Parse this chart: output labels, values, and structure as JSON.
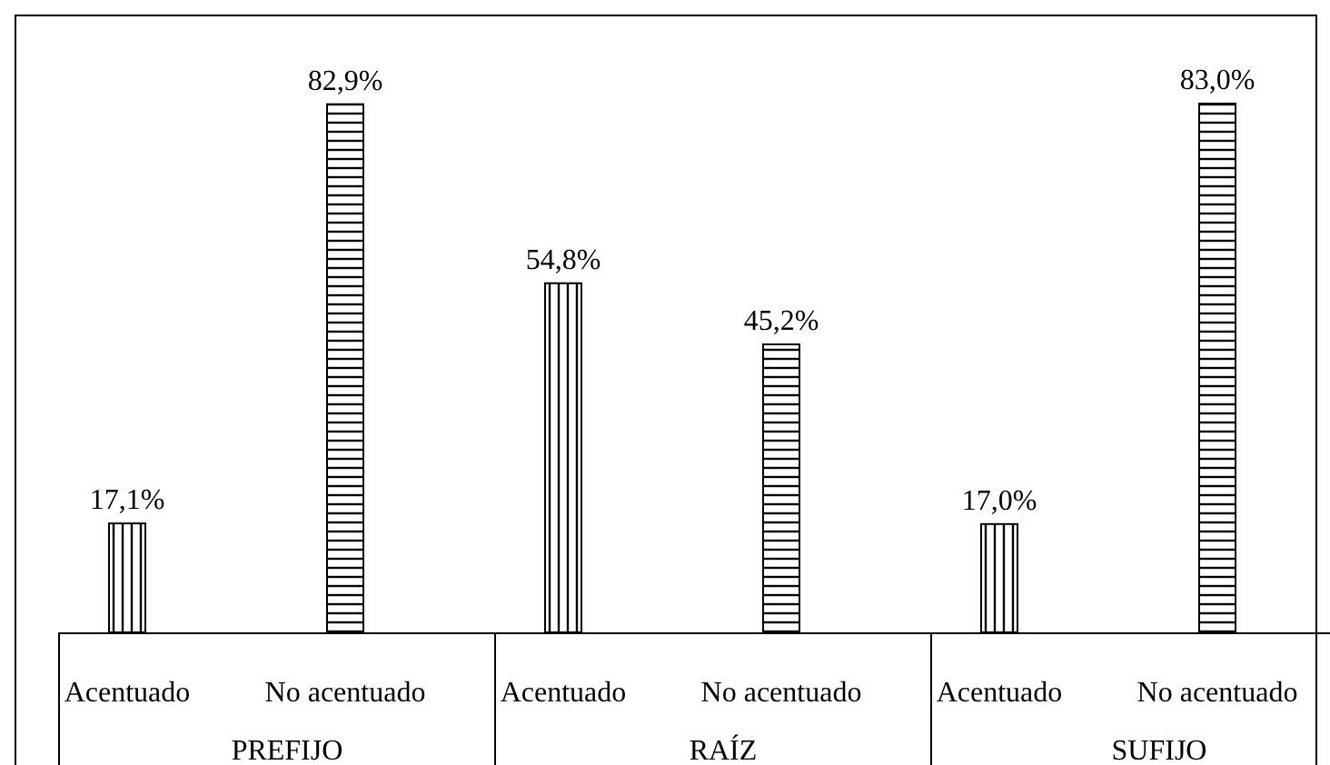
{
  "chart_data": {
    "type": "bar",
    "categories": [
      "Acentuado",
      "No acentuado",
      "Acentuado",
      "No acentuado",
      "Acentuado",
      "No acentuado"
    ],
    "values": [
      17.1,
      82.9,
      54.8,
      45.2,
      17.0,
      83.0
    ],
    "colors": [
      "#000000",
      "#000000",
      "#000000",
      "#000000",
      "#000000",
      "#000000"
    ],
    "value_labels": [
      "17,1%",
      "82,9%",
      "54,8%",
      "45,2%",
      "17,0%",
      "83,0%"
    ],
    "annotations": [
      "PREFIJO",
      "RAÍZ",
      "SUFIJO"
    ]
  }
}
